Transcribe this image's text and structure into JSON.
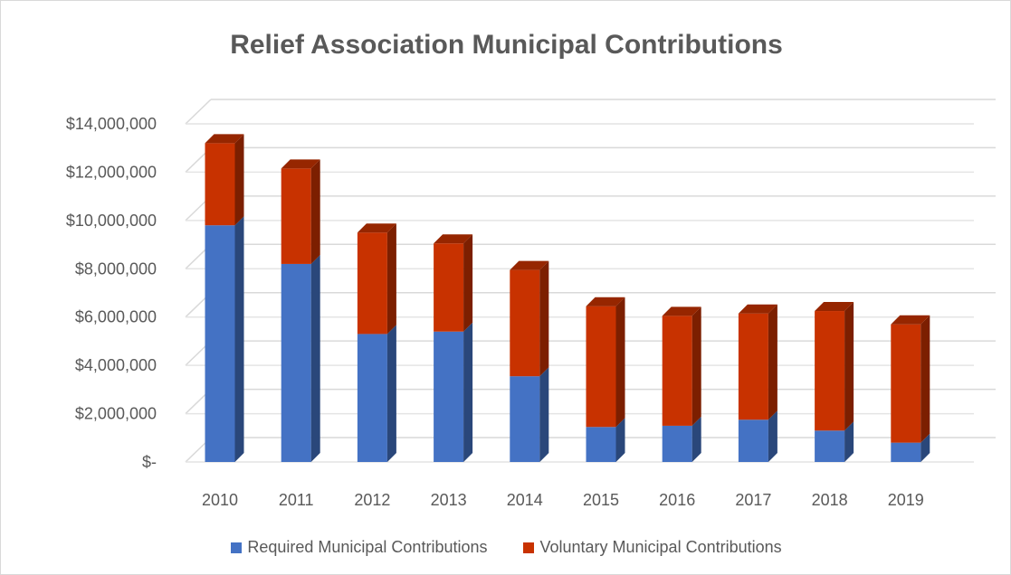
{
  "chart_data": {
    "type": "bar",
    "stacked": true,
    "style": "3d-column",
    "title": "Relief Association Municipal Contributions",
    "xlabel": "",
    "ylabel": "",
    "categories": [
      "2010",
      "2011",
      "2012",
      "2013",
      "2014",
      "2015",
      "2016",
      "2017",
      "2018",
      "2019"
    ],
    "series": [
      {
        "name": "Required Municipal Contributions",
        "color": "#4472c4",
        "values": [
          9800000,
          8200000,
          5300000,
          5400000,
          3550000,
          1450000,
          1500000,
          1750000,
          1300000,
          800000
        ]
      },
      {
        "name": "Voluntary Municipal Contributions",
        "color": "#c83200",
        "values": [
          3400000,
          3950000,
          4200000,
          3650000,
          4400000,
          5000000,
          4550000,
          4400000,
          4950000,
          4900000
        ]
      }
    ],
    "ylim": [
      0,
      14000000
    ],
    "yticks": [
      0,
      2000000,
      4000000,
      6000000,
      8000000,
      10000000,
      12000000,
      14000000
    ],
    "ytick_labels": [
      "$-",
      "$2,000,000",
      "$4,000,000",
      "$6,000,000",
      "$8,000,000",
      "$10,000,000",
      "$12,000,000",
      "$14,000,000"
    ],
    "grid": true,
    "legend_position": "bottom"
  }
}
